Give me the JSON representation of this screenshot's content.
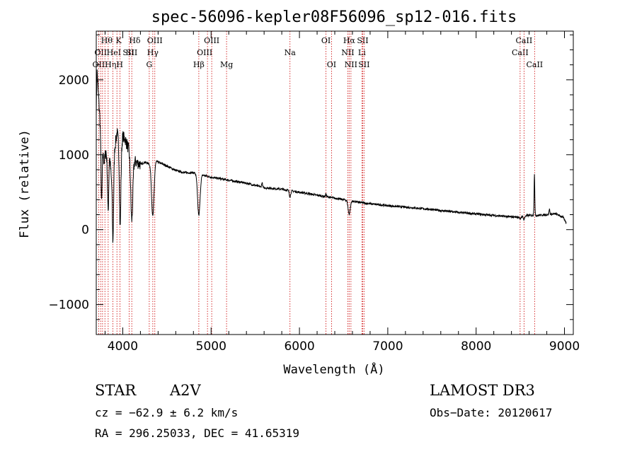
{
  "chart_data": {
    "type": "line",
    "title": "spec-56096-kepler08F56096_sp12-016.fits",
    "xlabel": "Wavelength (Å)",
    "ylabel": "Flux (relative)",
    "xlim": [
      3700,
      9100
    ],
    "ylim": [
      -1400,
      2650
    ],
    "xticks": [
      4000,
      5000,
      6000,
      7000,
      8000,
      9000
    ],
    "xtick_labels": [
      "4000",
      "5000",
      "6000",
      "7000",
      "8000",
      "9000"
    ],
    "yticks": [
      -1000,
      0,
      1000,
      2000
    ],
    "ytick_labels": [
      "−1000",
      "0",
      "1000",
      "2000"
    ],
    "spectrum_anchors": [
      [
        3700,
        1600
      ],
      [
        3710,
        2100
      ],
      [
        3720,
        1900
      ],
      [
        3730,
        1700
      ],
      [
        3740,
        1500
      ],
      [
        3755,
        1200
      ],
      [
        3770,
        1050
      ],
      [
        3790,
        900
      ],
      [
        3810,
        1050
      ],
      [
        3830,
        800
      ],
      [
        3850,
        1000
      ],
      [
        3870,
        700
      ],
      [
        3890,
        750
      ],
      [
        3910,
        1100
      ],
      [
        3935,
        1300
      ],
      [
        3950,
        1200
      ],
      [
        3975,
        1000
      ],
      [
        4000,
        1250
      ],
      [
        4030,
        1200
      ],
      [
        4060,
        1100
      ],
      [
        4090,
        1000
      ],
      [
        4120,
        950
      ],
      [
        4150,
        900
      ],
      [
        4200,
        870
      ],
      [
        4250,
        900
      ],
      [
        4300,
        880
      ],
      [
        4350,
        940
      ],
      [
        4400,
        900
      ],
      [
        4500,
        850
      ],
      [
        4600,
        790
      ],
      [
        4700,
        760
      ],
      [
        4800,
        760
      ],
      [
        4900,
        730
      ],
      [
        5000,
        700
      ],
      [
        5100,
        680
      ],
      [
        5200,
        660
      ],
      [
        5300,
        640
      ],
      [
        5400,
        620
      ],
      [
        5500,
        590
      ],
      [
        5600,
        560
      ],
      [
        5700,
        550
      ],
      [
        5800,
        540
      ],
      [
        5900,
        520
      ],
      [
        6000,
        500
      ],
      [
        6100,
        480
      ],
      [
        6200,
        460
      ],
      [
        6300,
        440
      ],
      [
        6400,
        420
      ],
      [
        6500,
        400
      ],
      [
        6600,
        380
      ],
      [
        6700,
        360
      ],
      [
        6800,
        345
      ],
      [
        7000,
        320
      ],
      [
        7200,
        300
      ],
      [
        7400,
        280
      ],
      [
        7600,
        255
      ],
      [
        7800,
        230
      ],
      [
        8000,
        210
      ],
      [
        8200,
        190
      ],
      [
        8400,
        170
      ],
      [
        8500,
        170
      ],
      [
        8600,
        190
      ],
      [
        8700,
        190
      ],
      [
        8800,
        200
      ],
      [
        8900,
        210
      ],
      [
        8980,
        170
      ],
      [
        9020,
        90
      ]
    ],
    "absorption_features": [
      {
        "wave": 3760,
        "depth": 800,
        "width": 6
      },
      {
        "wave": 3835,
        "depth": 600,
        "width": 6
      },
      {
        "wave": 3889,
        "depth": 900,
        "width": 7
      },
      {
        "wave": 3970,
        "depth": 1000,
        "width": 8
      },
      {
        "wave": 4102,
        "depth": 850,
        "width": 12
      },
      {
        "wave": 4340,
        "depth": 750,
        "width": 14
      },
      {
        "wave": 4861,
        "depth": 550,
        "width": 14
      },
      {
        "wave": 5893,
        "depth": 80,
        "width": 8
      },
      {
        "wave": 6563,
        "depth": 180,
        "width": 12
      },
      {
        "wave": 8498,
        "depth": 40,
        "width": 6
      },
      {
        "wave": 8542,
        "depth": 50,
        "width": 6
      }
    ],
    "emission_features": [
      {
        "wave": 8660,
        "height": 560,
        "width": 4
      },
      {
        "wave": 5577,
        "height": 60,
        "width": 5
      },
      {
        "wave": 6300,
        "height": 40,
        "width": 4
      },
      {
        "wave": 8830,
        "height": 70,
        "width": 5
      }
    ],
    "line_markers": [
      {
        "wave": 3727,
        "label": "OII",
        "row": 3,
        "dx": 0
      },
      {
        "wave": 3750,
        "label": "OII",
        "row": 2,
        "dx": 0
      },
      {
        "wave": 3771,
        "label": "Hθ",
        "row": 1,
        "dx": 6
      },
      {
        "wave": 3798,
        "label": "Hη",
        "row": 3,
        "dx": 8
      },
      {
        "wave": 3835,
        "label": "HeI",
        "row": 2,
        "dx": 8
      },
      {
        "wave": 3889,
        "label": "K",
        "row": 1,
        "dx": 8
      },
      {
        "wave": 3934,
        "label": "H",
        "row": 3,
        "dx": 4
      },
      {
        "wave": 3968,
        "label": "SII",
        "row": 2,
        "dx": 12
      },
      {
        "wave": 4072,
        "label": "Hδ",
        "row": 1,
        "dx": 8
      },
      {
        "wave": 4102,
        "label": "SII",
        "row": 2,
        "dx": 0
      },
      {
        "wave": 4300,
        "label": "G",
        "row": 3,
        "dx": 0
      },
      {
        "wave": 4340,
        "label": "Hγ",
        "row": 2,
        "dx": 0
      },
      {
        "wave": 4363,
        "label": "OIII",
        "row": 1,
        "dx": 0
      },
      {
        "wave": 4861,
        "label": "Hβ",
        "row": 3,
        "dx": 0
      },
      {
        "wave": 4959,
        "label": "OIII",
        "row": 2,
        "dx": -4
      },
      {
        "wave": 5007,
        "label": "OIII",
        "row": 1,
        "dx": 0
      },
      {
        "wave": 5175,
        "label": "Mg",
        "row": 3,
        "dx": 0
      },
      {
        "wave": 5893,
        "label": "Na",
        "row": 2,
        "dx": 0
      },
      {
        "wave": 6300,
        "label": "OI",
        "row": 1,
        "dx": 0
      },
      {
        "wave": 6363,
        "label": "OI",
        "row": 3,
        "dx": 0
      },
      {
        "wave": 6548,
        "label": "NII",
        "row": 2,
        "dx": 0
      },
      {
        "wave": 6563,
        "label": "Hα",
        "row": 1,
        "dx": 0
      },
      {
        "wave": 6583,
        "label": "NII",
        "row": 3,
        "dx": 0
      },
      {
        "wave": 6707,
        "label": "Li",
        "row": 2,
        "dx": 0
      },
      {
        "wave": 6716,
        "label": "SII",
        "row": 1,
        "dx": 0
      },
      {
        "wave": 6731,
        "label": "SII",
        "row": 3,
        "dx": 0
      },
      {
        "wave": 8498,
        "label": "CaII",
        "row": 2,
        "dx": 0
      },
      {
        "wave": 8542,
        "label": "CaII",
        "row": 1,
        "dx": 0
      },
      {
        "wave": 8662,
        "label": "CaII",
        "row": 3,
        "dx": 0
      }
    ]
  },
  "info": {
    "object_class": "STAR",
    "subclass": "A2V",
    "survey": "LAMOST DR3",
    "redshift": "cz = −62.9 ± 6.2 km/s",
    "obs_date": "Obs−Date: 20120617",
    "coords": "RA = 296.25033, DEC =  41.65319"
  },
  "colors": {
    "axis": "#000000",
    "spectrum": "#000000",
    "marker": "#cc0000"
  }
}
